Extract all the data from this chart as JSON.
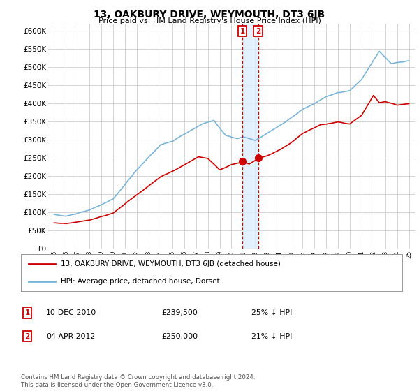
{
  "title": "13, OAKBURY DRIVE, WEYMOUTH, DT3 6JB",
  "subtitle": "Price paid vs. HM Land Registry's House Price Index (HPI)",
  "hpi_label": "HPI: Average price, detached house, Dorset",
  "property_label": "13, OAKBURY DRIVE, WEYMOUTH, DT3 6JB (detached house)",
  "annotation1": {
    "num": "1",
    "date": "10-DEC-2010",
    "price": "£239,500",
    "pct": "25% ↓ HPI",
    "year": 2010.92
  },
  "annotation2": {
    "num": "2",
    "date": "04-APR-2012",
    "price": "£250,000",
    "pct": "21% ↓ HPI",
    "year": 2012.25
  },
  "t1_price": 239500,
  "t2_price": 250000,
  "footer": "Contains HM Land Registry data © Crown copyright and database right 2024.\nThis data is licensed under the Open Government Licence v3.0.",
  "hpi_color": "#7ab4d8",
  "property_color": "#cc0000",
  "annotation_color": "#cc0000",
  "shade_color": "#ddeeff",
  "bg_color": "#ffffff",
  "grid_color": "#cccccc",
  "ylim_min": 0,
  "ylim_max": 620000,
  "ytick_step": 50000,
  "xmin": 1994.5,
  "xmax": 2025.5
}
